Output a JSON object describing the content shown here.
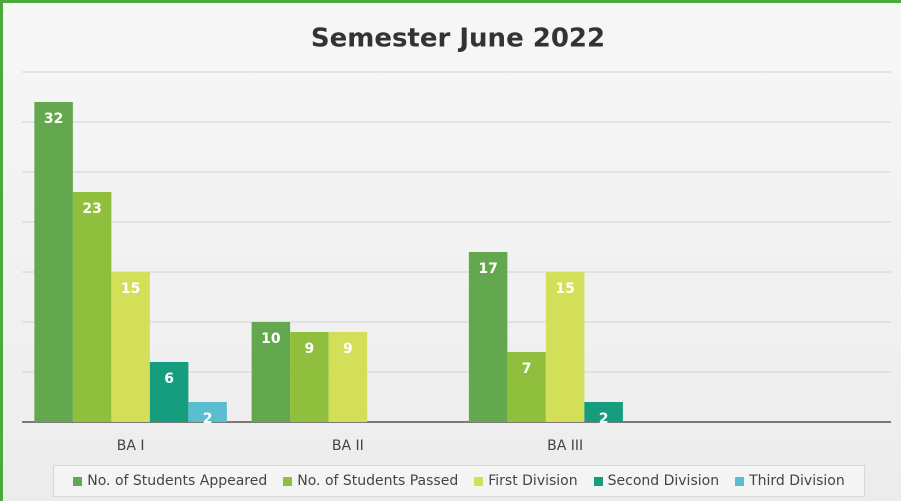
{
  "chart_data": {
    "type": "bar",
    "title": "Semester June 2022",
    "categories": [
      "BA I",
      "BA II",
      "BA III",
      null
    ],
    "series": [
      {
        "name": "No. of Students Appeared",
        "color": "#63a84e",
        "values": [
          32,
          10,
          17,
          null
        ]
      },
      {
        "name": "No. of Students Passed",
        "color": "#8fbf3d",
        "values": [
          23,
          9,
          7,
          null
        ]
      },
      {
        "name": "First Division",
        "color": "#d3df58",
        "values": [
          15,
          9,
          15,
          null
        ]
      },
      {
        "name": "Second Division",
        "color": "#169c7f",
        "values": [
          6,
          null,
          2,
          null
        ]
      },
      {
        "name": "Third Division",
        "color": "#5bbdd0",
        "values": [
          2,
          null,
          null,
          null
        ]
      }
    ],
    "ylim": [
      0,
      35
    ],
    "yticks": [
      0,
      5,
      10,
      15,
      20,
      25,
      30,
      35
    ],
    "grid": true,
    "legend": "bottom"
  }
}
